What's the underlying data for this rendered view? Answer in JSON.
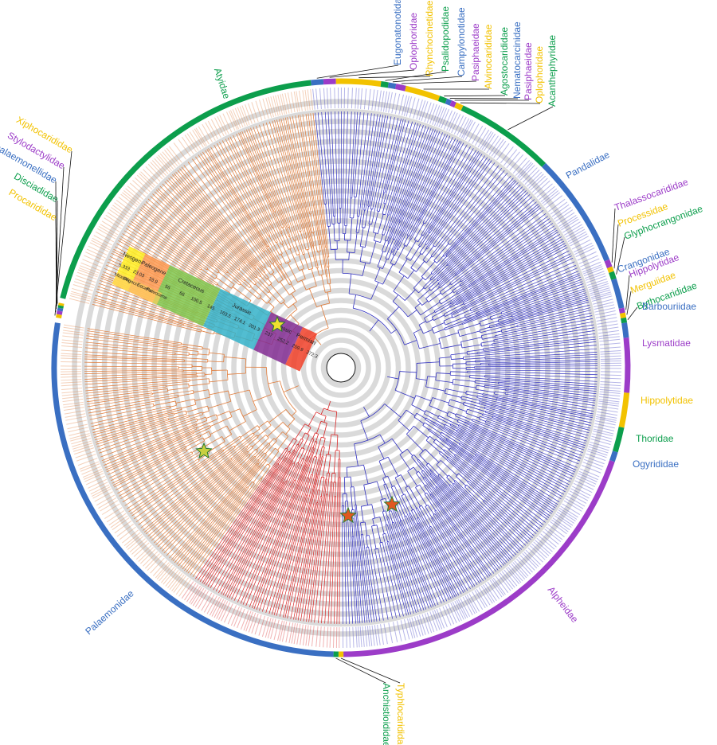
{
  "colors": {
    "green": "#0c9e4c",
    "blue": "#3a6fc2",
    "purple": "#9c3cc8",
    "yellow": "#f2c200",
    "orange": "#e07b39",
    "navy": "#3232c0",
    "red": "#d82626",
    "grey": "#d4d4d4",
    "black": "#111111"
  },
  "families": [
    {
      "name": "Atyidae",
      "color": "green"
    },
    {
      "name": "Eugonatonotidae",
      "color": "blue"
    },
    {
      "name": "Oplophoridae",
      "color": "purple"
    },
    {
      "name": "Rhynchocinetidae",
      "color": "yellow"
    },
    {
      "name": "Psalidopodidae",
      "color": "green"
    },
    {
      "name": "Campylonotidae",
      "color": "blue"
    },
    {
      "name": "Pasiphaeidae",
      "color": "purple"
    },
    {
      "name": "Alvinocarididae",
      "color": "yellow"
    },
    {
      "name": "Agostocarididae",
      "color": "green"
    },
    {
      "name": "Nematocarcinidae",
      "color": "blue"
    },
    {
      "name": "Pasiphaeidae",
      "color": "purple"
    },
    {
      "name": "Oplophoridae",
      "color": "yellow"
    },
    {
      "name": "Acanthephyridae",
      "color": "green"
    },
    {
      "name": "Pandalidae",
      "color": "blue"
    },
    {
      "name": "Thalassocarididae",
      "color": "purple"
    },
    {
      "name": "Processidae",
      "color": "yellow"
    },
    {
      "name": "Glyphocrangonidae",
      "color": "green"
    },
    {
      "name": "Crangonidae",
      "color": "blue"
    },
    {
      "name": "Hippolytidae",
      "color": "purple"
    },
    {
      "name": "Merguiidae",
      "color": "yellow"
    },
    {
      "name": "Bythocarididae",
      "color": "green"
    },
    {
      "name": "Barbouriidae",
      "color": "blue"
    },
    {
      "name": "Lysmatidae",
      "color": "purple"
    },
    {
      "name": "Hippolytidae",
      "color": "yellow"
    },
    {
      "name": "Thoridae",
      "color": "green"
    },
    {
      "name": "Ogyrididae",
      "color": "blue"
    },
    {
      "name": "Alpheidae",
      "color": "purple"
    },
    {
      "name": "Typhlocarididae",
      "color": "yellow"
    },
    {
      "name": "Anchistioididae",
      "color": "green"
    },
    {
      "name": "Palaemonidae",
      "color": "blue"
    },
    {
      "name": "Procarididae",
      "color": "yellow"
    },
    {
      "name": "Disciadidae",
      "color": "green"
    },
    {
      "name": "Bathypalaemonellidae",
      "color": "blue"
    },
    {
      "name": "Stylodactylidae",
      "color": "purple"
    },
    {
      "name": "Xiphocarididae",
      "color": "yellow"
    }
  ],
  "timescale": {
    "periods": [
      {
        "name": "Neogene",
        "color": "#ffee22"
      },
      {
        "name": "Paleogene",
        "color": "#fd9a52"
      },
      {
        "name": "Cretaceous",
        "color": "#7fc64e"
      },
      {
        "name": "Jurassic",
        "color": "#34b2c9"
      },
      {
        "name": "Triassic",
        "color": "#812b92"
      },
      {
        "name": "Permian",
        "color": "#f04028"
      }
    ],
    "epochs": [
      {
        "name": "Miocene"
      },
      {
        "name": "Oligocene"
      },
      {
        "name": "Eocene"
      },
      {
        "name": "Paleocene"
      }
    ],
    "ticks": [
      "5.333",
      "23.03",
      "33.9",
      "56",
      "66",
      "100.5",
      "145",
      "163.5",
      "174.1",
      "201.3",
      "237",
      "252.2",
      "259.9",
      "272.3"
    ]
  },
  "markers": [
    {
      "name": "star-yellow-timescale",
      "color": "#f0e030"
    },
    {
      "name": "star-yellow-palaemonidae",
      "color": "#c8d040"
    },
    {
      "name": "star-orange-clade-1",
      "color": "#e05820"
    },
    {
      "name": "star-orange-clade-2",
      "color": "#e05820"
    }
  ]
}
